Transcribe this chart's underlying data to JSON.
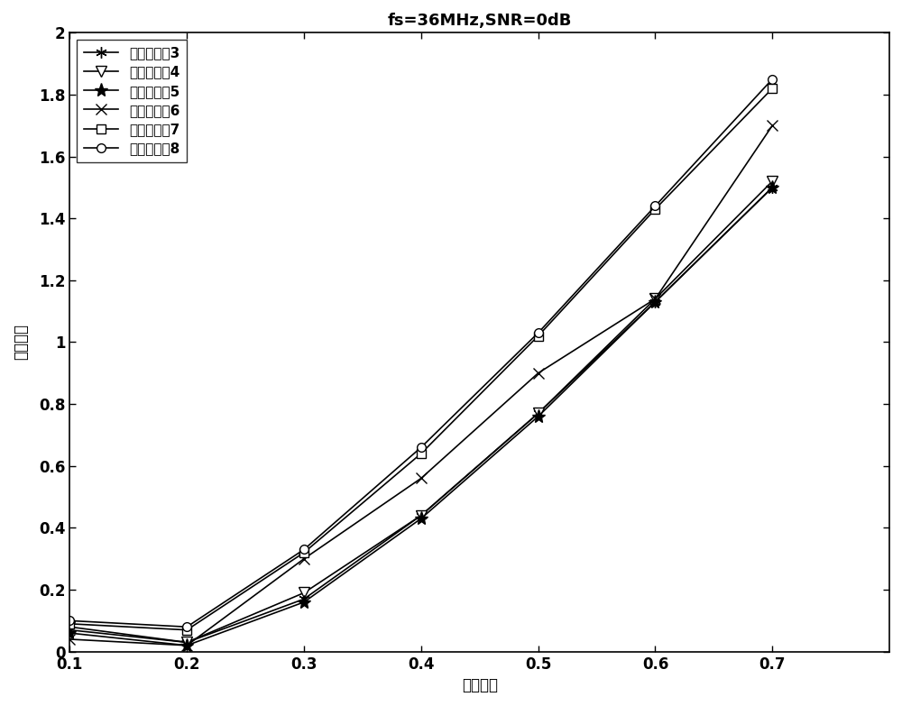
{
  "title": "fs=36MHz,SNR=0dB",
  "xlabel": "滚降系数",
  "ylabel": "均方误差",
  "xlim": [
    0.1,
    0.8
  ],
  "ylim": [
    0,
    2
  ],
  "xticks": [
    0.1,
    0.2,
    0.3,
    0.4,
    0.5,
    0.6,
    0.7
  ],
  "yticks": [
    0,
    0.2,
    0.4,
    0.6,
    0.8,
    1.0,
    1.2,
    1.4,
    1.6,
    1.8,
    2.0
  ],
  "x": [
    0.1,
    0.2,
    0.3,
    0.4,
    0.5,
    0.6,
    0.7
  ],
  "series": [
    {
      "label": "分解层数为3",
      "y": [
        0.07,
        0.03,
        0.17,
        0.44,
        0.77,
        1.13,
        1.5
      ],
      "marker": "star6",
      "color": "black",
      "linewidth": 1.2
    },
    {
      "label": "分解层数为4",
      "y": [
        0.08,
        0.03,
        0.19,
        0.44,
        0.77,
        1.14,
        1.52
      ],
      "marker": "v",
      "color": "black",
      "linewidth": 1.2
    },
    {
      "label": "分解层数为5",
      "y": [
        0.06,
        0.02,
        0.16,
        0.43,
        0.76,
        1.13,
        1.5
      ],
      "marker": "star5",
      "color": "black",
      "linewidth": 1.2
    },
    {
      "label": "分解层数为6",
      "y": [
        0.04,
        0.02,
        0.3,
        0.56,
        0.9,
        1.14,
        1.7
      ],
      "marker": "x",
      "color": "black",
      "linewidth": 1.2
    },
    {
      "label": "分解层数为7",
      "y": [
        0.09,
        0.07,
        0.32,
        0.64,
        1.02,
        1.43,
        1.82
      ],
      "marker": "s",
      "color": "black",
      "linewidth": 1.2
    },
    {
      "label": "分解层数为8",
      "y": [
        0.1,
        0.08,
        0.33,
        0.66,
        1.03,
        1.44,
        1.85
      ],
      "marker": "o",
      "color": "black",
      "linewidth": 1.2
    }
  ],
  "legend_loc": "upper left",
  "background_color": "white"
}
